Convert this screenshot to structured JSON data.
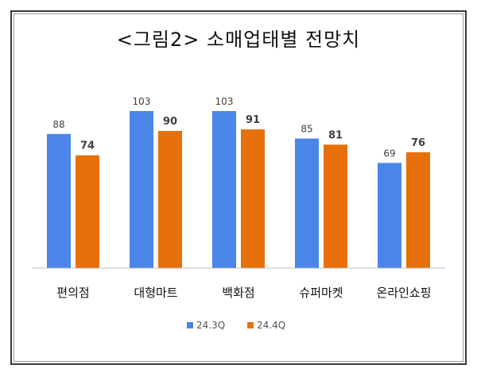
{
  "colors": {
    "series_a": "#4a86e8",
    "series_b": "#e8700a",
    "axis": "#bfbfbf"
  },
  "chart_data": {
    "type": "bar",
    "title": "<그림2> 소매업태별 전망치",
    "categories": [
      "편의점",
      "대형마트",
      "백화점",
      "슈퍼마켓",
      "온라인쇼핑"
    ],
    "series": [
      {
        "name": "24.3Q",
        "values": [
          88,
          103,
          103,
          85,
          69
        ]
      },
      {
        "name": "24.4Q",
        "values": [
          74,
          90,
          91,
          81,
          76
        ]
      }
    ],
    "xlabel": "",
    "ylabel": "",
    "ylim": [
      0,
      103
    ],
    "grid": false,
    "legend_position": "bottom",
    "data_labels": true
  }
}
